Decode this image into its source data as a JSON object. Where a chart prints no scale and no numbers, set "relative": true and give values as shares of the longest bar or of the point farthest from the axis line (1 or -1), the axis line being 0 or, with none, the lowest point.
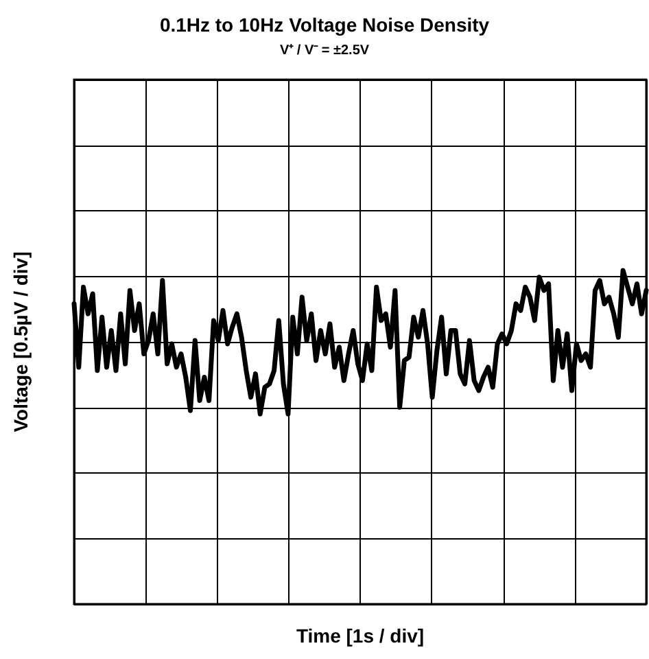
{
  "chart_data": {
    "type": "line",
    "title": "0.1Hz to 10Hz Voltage Noise Density",
    "subtitle": "V⁺ / V⁻ = ±2.5V",
    "xlabel": "Time [1s / div]",
    "ylabel": "Voltage [0.5µV / div]",
    "relative": true,
    "grid": true,
    "categories": [
      null,
      null,
      null,
      null,
      null,
      null,
      null,
      null,
      null,
      null,
      null,
      null,
      null,
      null,
      null,
      null,
      null,
      null,
      null,
      null,
      null,
      null,
      null,
      null,
      null,
      null,
      null,
      null,
      null,
      null,
      null,
      null,
      null,
      null,
      null,
      null,
      null,
      null,
      null,
      null,
      null,
      null,
      null,
      null,
      null,
      null,
      null,
      null,
      null,
      null,
      null,
      null,
      null,
      null,
      null,
      null,
      null,
      null,
      null,
      null,
      null,
      null,
      null,
      null,
      null,
      null,
      null,
      null,
      null,
      null,
      null,
      null,
      null,
      null,
      null,
      null,
      null,
      null,
      null,
      null,
      null,
      null,
      null,
      null,
      null,
      null,
      null,
      null,
      null,
      null,
      null,
      null,
      null,
      null,
      null,
      null,
      null,
      null,
      null,
      null,
      null,
      null,
      null,
      null,
      null,
      null,
      null,
      null,
      null,
      null,
      null,
      null,
      null,
      null,
      null,
      null,
      null,
      null,
      null,
      null,
      null,
      null,
      null,
      null
    ],
    "series": [
      {
        "color": "#000000",
        "values": [
          0.9,
          0.71,
          0.95,
          0.87,
          0.93,
          0.7,
          0.86,
          0.71,
          0.82,
          0.7,
          0.87,
          0.72,
          0.94,
          0.82,
          0.9,
          0.75,
          0.79,
          0.87,
          0.75,
          0.97,
          0.72,
          0.78,
          0.71,
          0.75,
          0.68,
          0.58,
          0.79,
          0.61,
          0.68,
          0.61,
          0.85,
          0.79,
          0.88,
          0.78,
          0.83,
          0.87,
          0.8,
          0.7,
          0.62,
          0.69,
          0.57,
          0.65,
          0.66,
          0.7,
          0.85,
          0.66,
          0.57,
          0.86,
          0.75,
          0.92,
          0.79,
          0.87,
          0.73,
          0.82,
          0.75,
          0.84,
          0.71,
          0.77,
          0.67,
          0.75,
          0.82,
          0.72,
          0.67,
          0.78,
          0.7,
          0.95,
          0.85,
          0.87,
          0.77,
          0.94,
          0.59,
          0.73,
          0.74,
          0.86,
          0.8,
          0.88,
          0.78,
          0.62,
          0.76,
          0.86,
          0.69,
          0.82,
          0.82,
          0.69,
          0.66,
          0.79,
          0.67,
          0.64,
          0.68,
          0.71,
          0.65,
          0.78,
          0.81,
          0.78,
          0.82,
          0.9,
          0.88,
          0.95,
          0.92,
          0.85,
          0.98,
          0.94,
          0.96,
          0.67,
          0.82,
          0.71,
          0.81,
          0.64,
          0.78,
          0.73,
          0.75,
          0.71,
          0.94,
          0.97,
          0.9,
          0.92,
          0.87,
          0.8,
          1,
          0.95,
          0.9,
          0.96,
          0.87,
          0.94
        ]
      }
    ]
  }
}
